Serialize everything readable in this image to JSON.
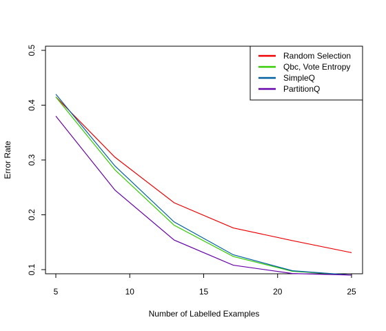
{
  "chart_data": {
    "type": "line",
    "title": "",
    "xlabel": "Number of Labelled Examples",
    "ylabel": "Error Rate",
    "xlim": [
      5,
      25
    ],
    "ylim": [
      0.1,
      0.5
    ],
    "xticks": [
      5,
      10,
      15,
      20,
      25
    ],
    "yticks": [
      0.1,
      0.2,
      0.3,
      0.4,
      0.5
    ],
    "grid": false,
    "legend": "top-right",
    "series": [
      {
        "name": "Random Selection",
        "color": "#ee0000",
        "x": [
          5,
          9,
          13,
          17,
          21,
          25
        ],
        "y": [
          0.415,
          0.305,
          0.222,
          0.176,
          0.153,
          0.131
        ]
      },
      {
        "name": "Qbc, Vote Entropy",
        "color": "#33cc00",
        "x": [
          5,
          9,
          13,
          17,
          21,
          25
        ],
        "y": [
          0.415,
          0.282,
          0.181,
          0.124,
          0.097,
          0.09
        ]
      },
      {
        "name": "SimpleQ",
        "color": "#005fa0",
        "x": [
          5,
          9,
          13,
          17,
          21,
          25
        ],
        "y": [
          0.42,
          0.289,
          0.187,
          0.127,
          0.098,
          0.09
        ]
      },
      {
        "name": "PartitionQ",
        "color": "#6600aa",
        "x": [
          5,
          9,
          13,
          17,
          21,
          25
        ],
        "y": [
          0.38,
          0.245,
          0.154,
          0.108,
          0.093,
          0.09
        ]
      }
    ]
  }
}
